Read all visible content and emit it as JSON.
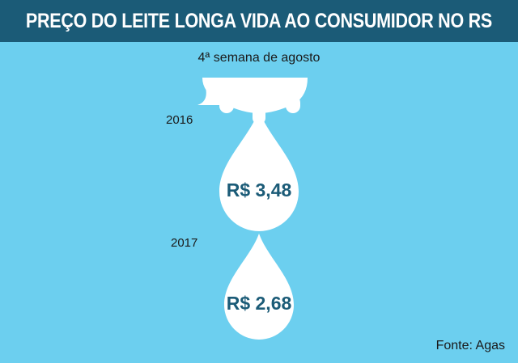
{
  "title": "PREÇO DO LEITE LONGA VIDA AO CONSUMIDOR NO RS",
  "subtitle": "4ª semana de agosto",
  "source": "Fonte: Agas",
  "colors": {
    "header": "#1b5b77",
    "background": "#6ccfef",
    "drop": "#ffffff",
    "price_text": "#1b5b77"
  },
  "chart_data": {
    "type": "bar",
    "title": "PREÇO DO LEITE LONGA VIDA AO CONSUMIDOR NO RS",
    "subtitle": "4ª semana de agosto",
    "categories": [
      "2016",
      "2017"
    ],
    "values": [
      3.48,
      2.68
    ],
    "value_labels": [
      "R$ 3,48",
      "R$ 2,68"
    ],
    "source": "Fonte: Agas"
  }
}
